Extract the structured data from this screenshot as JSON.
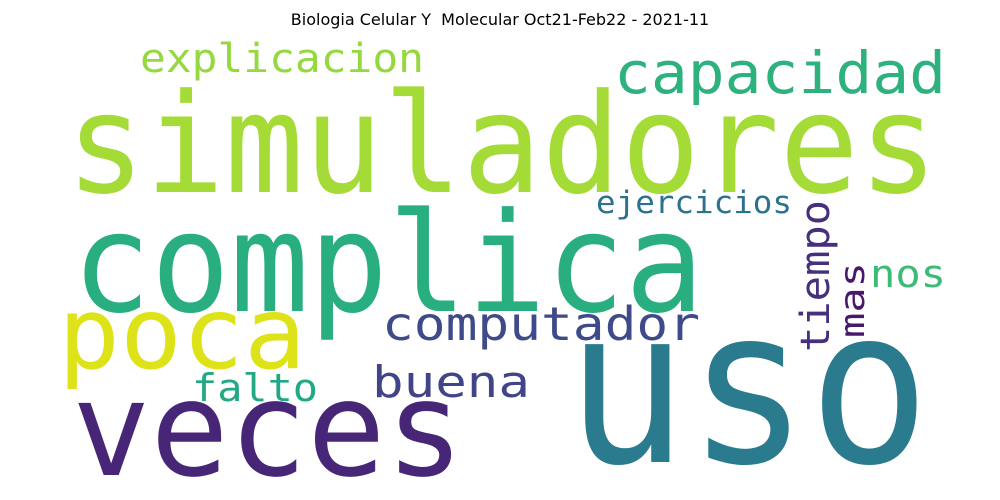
{
  "chart_data": {
    "type": "wordcloud",
    "title": "Biologia Celular Y  Molecular Oct21-Feb22 - 2021-11",
    "words": [
      {
        "text": "uso",
        "color": "#2a7b8e"
      },
      {
        "text": "simuladores",
        "color": "#a5db36"
      },
      {
        "text": "complica",
        "color": "#29af7f"
      },
      {
        "text": "veces",
        "color": "#482677"
      },
      {
        "text": "poca",
        "color": "#dde318"
      },
      {
        "text": "capacidad",
        "color": "#2db27d"
      },
      {
        "text": "computador",
        "color": "#3e4a89"
      },
      {
        "text": "explicacion",
        "color": "#95d840"
      },
      {
        "text": "buena",
        "color": "#414487"
      },
      {
        "text": "tiempo",
        "color": "#46307e"
      },
      {
        "text": "mas",
        "color": "#48186a"
      },
      {
        "text": "nos",
        "color": "#3bbb75"
      },
      {
        "text": "ejercicios",
        "color": "#2c728e"
      },
      {
        "text": "falto",
        "color": "#22a884"
      }
    ]
  }
}
